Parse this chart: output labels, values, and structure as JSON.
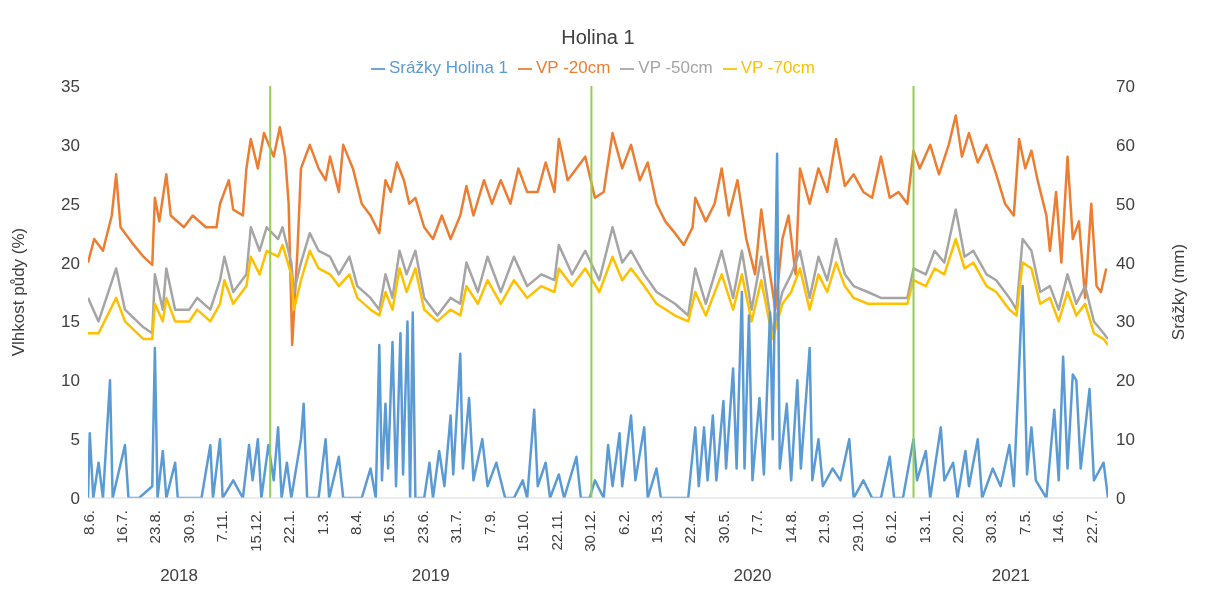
{
  "chart_data": {
    "type": "line",
    "title": "Holina 1",
    "ylabel": "Vlhkost půdy (%)",
    "y2label": "Srážky (mm)",
    "legend": "top",
    "marker": "none",
    "line_style": "solid",
    "xlim": [
      "2018-06-08",
      "2021-08-10"
    ],
    "xticks": [
      {
        "value": "2018-06-08",
        "label": "8.6."
      },
      {
        "value": "2018-07-16",
        "label": "16.7."
      },
      {
        "value": "2018-08-23",
        "label": "23.8."
      },
      {
        "value": "2018-09-30",
        "label": "30.9."
      },
      {
        "value": "2018-11-07",
        "label": "7.11."
      },
      {
        "value": "2018-12-15",
        "label": "15.12."
      },
      {
        "value": "2019-01-22",
        "label": "22.1."
      },
      {
        "value": "2019-03-01",
        "label": "1.3."
      },
      {
        "value": "2019-04-08",
        "label": "8.4."
      },
      {
        "value": "2019-05-16",
        "label": "16.5."
      },
      {
        "value": "2019-06-23",
        "label": "23.6."
      },
      {
        "value": "2019-07-31",
        "label": "31.7."
      },
      {
        "value": "2019-09-07",
        "label": "7.9."
      },
      {
        "value": "2019-10-15",
        "label": "15.10."
      },
      {
        "value": "2019-11-22",
        "label": "22.11."
      },
      {
        "value": "2019-12-30",
        "label": "30.12."
      },
      {
        "value": "2020-02-06",
        "label": "6.2."
      },
      {
        "value": "2020-03-15",
        "label": "15.3."
      },
      {
        "value": "2020-04-22",
        "label": "22.4."
      },
      {
        "value": "2020-05-30",
        "label": "30.5."
      },
      {
        "value": "2020-07-07",
        "label": "7.7."
      },
      {
        "value": "2020-08-14",
        "label": "14.8."
      },
      {
        "value": "2020-09-21",
        "label": "21.9."
      },
      {
        "value": "2020-10-29",
        "label": "29.10."
      },
      {
        "value": "2020-12-06",
        "label": "6.12."
      },
      {
        "value": "2021-01-13",
        "label": "13.1."
      },
      {
        "value": "2021-02-20",
        "label": "20.2."
      },
      {
        "value": "2021-03-30",
        "label": "30.3."
      },
      {
        "value": "2021-05-07",
        "label": "7.5."
      },
      {
        "value": "2021-06-14",
        "label": "14.6."
      },
      {
        "value": "2021-07-22",
        "label": "22.7."
      }
    ],
    "ylim": [
      0,
      35
    ],
    "yticks": [
      0,
      5,
      10,
      15,
      20,
      25,
      30,
      35
    ],
    "y2lim": [
      0,
      70
    ],
    "y2ticks": [
      0,
      10,
      20,
      30,
      40,
      50,
      60,
      70
    ],
    "ref_lines": [
      {
        "axis": "x",
        "value": "2019-01-01",
        "color": "#92d050"
      },
      {
        "axis": "x",
        "value": "2020-01-01",
        "color": "#92d050"
      },
      {
        "axis": "x",
        "value": "2021-01-01",
        "color": "#92d050"
      }
    ],
    "annotations": [
      "2018",
      "2019",
      "2020",
      "2021"
    ],
    "series": [
      {
        "name": "VP -20cm",
        "color": "#ed7d31",
        "x": [
          "2018-06-08",
          "2018-06-15",
          "2018-06-25",
          "2018-07-05",
          "2018-07-10",
          "2018-07-15",
          "2018-07-30",
          "2018-08-10",
          "2018-08-20",
          "2018-08-23",
          "2018-08-28",
          "2018-09-05",
          "2018-09-10",
          "2018-09-25",
          "2018-10-05",
          "2018-10-20",
          "2018-11-01",
          "2018-11-05",
          "2018-11-15",
          "2018-11-20",
          "2018-12-01",
          "2018-12-05",
          "2018-12-10",
          "2018-12-18",
          "2018-12-25",
          "2019-01-05",
          "2019-01-12",
          "2019-01-18",
          "2019-01-22",
          "2019-01-26",
          "2019-02-01",
          "2019-02-05",
          "2019-02-15",
          "2019-02-25",
          "2019-03-05",
          "2019-03-10",
          "2019-03-20",
          "2019-03-25",
          "2019-04-05",
          "2019-04-15",
          "2019-04-25",
          "2019-05-05",
          "2019-05-12",
          "2019-05-18",
          "2019-05-25",
          "2019-06-02",
          "2019-06-08",
          "2019-06-15",
          "2019-06-25",
          "2019-07-05",
          "2019-07-15",
          "2019-07-25",
          "2019-08-05",
          "2019-08-12",
          "2019-08-20",
          "2019-09-01",
          "2019-09-10",
          "2019-09-20",
          "2019-10-01",
          "2019-10-10",
          "2019-10-20",
          "2019-11-01",
          "2019-11-10",
          "2019-11-20",
          "2019-11-25",
          "2019-12-05",
          "2019-12-15",
          "2019-12-25",
          "2020-01-05",
          "2020-01-15",
          "2020-01-25",
          "2020-02-05",
          "2020-02-15",
          "2020-02-25",
          "2020-03-05",
          "2020-03-15",
          "2020-03-25",
          "2020-04-05",
          "2020-04-15",
          "2020-04-25",
          "2020-04-28",
          "2020-05-10",
          "2020-05-20",
          "2020-05-28",
          "2020-06-05",
          "2020-06-15",
          "2020-06-25",
          "2020-07-05",
          "2020-07-12",
          "2020-07-20",
          "2020-07-28",
          "2020-08-05",
          "2020-08-12",
          "2020-08-20",
          "2020-08-25",
          "2020-09-05",
          "2020-09-15",
          "2020-09-25",
          "2020-10-05",
          "2020-10-15",
          "2020-10-25",
          "2020-11-05",
          "2020-11-15",
          "2020-11-25",
          "2020-12-05",
          "2020-12-15",
          "2020-12-25",
          "2021-01-01",
          "2021-01-08",
          "2021-01-20",
          "2021-01-30",
          "2021-02-10",
          "2021-02-18",
          "2021-02-25",
          "2021-03-05",
          "2021-03-15",
          "2021-03-25",
          "2021-04-05",
          "2021-04-15",
          "2021-04-25",
          "2021-05-01",
          "2021-05-08",
          "2021-05-15",
          "2021-05-22",
          "2021-06-01",
          "2021-06-05",
          "2021-06-12",
          "2021-06-18",
          "2021-06-25",
          "2021-07-01",
          "2021-07-08",
          "2021-07-15",
          "2021-07-22",
          "2021-07-28",
          "2021-08-02",
          "2021-08-08"
        ],
        "values": [
          20,
          22,
          21,
          24,
          27.5,
          23,
          21.5,
          20.5,
          19.8,
          25.5,
          23.5,
          27.5,
          24,
          23,
          24,
          23,
          23,
          25,
          27,
          24.5,
          24,
          28,
          30.5,
          28,
          31,
          29,
          31.5,
          29,
          25,
          13,
          21,
          28,
          30,
          28,
          27,
          29,
          26,
          30,
          28,
          25,
          24,
          22.5,
          27,
          26,
          28.5,
          27,
          25,
          25.5,
          23,
          22,
          24,
          22,
          24,
          26.5,
          24,
          27,
          25,
          27,
          25,
          28,
          26,
          26,
          28.5,
          26,
          30.5,
          27,
          28,
          29,
          25.5,
          26,
          31,
          28,
          30,
          27,
          28.5,
          25,
          23.5,
          22.5,
          21.5,
          23,
          25.5,
          23.5,
          25,
          28,
          24,
          27,
          22,
          19,
          24.5,
          20,
          16,
          22,
          24,
          19,
          28,
          25,
          28,
          26,
          30.5,
          26.5,
          27.5,
          26,
          25.5,
          29,
          25.5,
          26,
          25,
          29.5,
          28,
          30,
          27.5,
          30,
          32.5,
          29,
          31,
          28.5,
          30,
          27.5,
          25,
          24,
          30.5,
          28,
          29.5,
          27,
          24,
          21,
          26,
          20,
          29,
          22,
          23.5,
          17,
          25,
          18,
          17.5,
          19.5
        ]
      },
      {
        "name": "VP -50cm",
        "color": "#a5a5a5",
        "x": [
          "2018-06-08",
          "2018-06-20",
          "2018-07-10",
          "2018-07-20",
          "2018-08-10",
          "2018-08-20",
          "2018-08-23",
          "2018-09-01",
          "2018-09-05",
          "2018-09-15",
          "2018-10-01",
          "2018-10-10",
          "2018-10-25",
          "2018-11-05",
          "2018-11-10",
          "2018-11-20",
          "2018-12-05",
          "2018-12-10",
          "2018-12-20",
          "2018-12-28",
          "2019-01-10",
          "2019-01-15",
          "2019-01-25",
          "2019-01-28",
          "2019-02-05",
          "2019-02-15",
          "2019-02-25",
          "2019-03-10",
          "2019-03-20",
          "2019-04-01",
          "2019-04-10",
          "2019-04-25",
          "2019-05-05",
          "2019-05-12",
          "2019-05-20",
          "2019-05-28",
          "2019-06-05",
          "2019-06-15",
          "2019-06-25",
          "2019-07-10",
          "2019-07-25",
          "2019-08-05",
          "2019-08-12",
          "2019-08-25",
          "2019-09-05",
          "2019-09-20",
          "2019-10-05",
          "2019-10-20",
          "2019-11-05",
          "2019-11-20",
          "2019-11-25",
          "2019-12-10",
          "2019-12-25",
          "2020-01-10",
          "2020-01-25",
          "2020-02-05",
          "2020-02-15",
          "2020-03-01",
          "2020-03-15",
          "2020-04-05",
          "2020-04-20",
          "2020-04-28",
          "2020-05-10",
          "2020-05-28",
          "2020-06-10",
          "2020-06-20",
          "2020-07-01",
          "2020-07-12",
          "2020-07-25",
          "2020-08-05",
          "2020-08-15",
          "2020-08-25",
          "2020-09-05",
          "2020-09-15",
          "2020-09-25",
          "2020-10-05",
          "2020-10-15",
          "2020-10-25",
          "2020-11-10",
          "2020-11-25",
          "2020-12-10",
          "2020-12-25",
          "2021-01-01",
          "2021-01-15",
          "2021-01-25",
          "2021-02-05",
          "2021-02-18",
          "2021-02-28",
          "2021-03-10",
          "2021-03-25",
          "2021-04-05",
          "2021-04-20",
          "2021-04-28",
          "2021-05-05",
          "2021-05-15",
          "2021-05-25",
          "2021-06-05",
          "2021-06-15",
          "2021-06-25",
          "2021-07-05",
          "2021-07-15",
          "2021-07-25",
          "2021-08-05",
          "2021-08-10"
        ],
        "values": [
          17,
          15,
          19.5,
          16,
          14.5,
          14,
          19,
          16,
          19.5,
          16,
          16,
          17,
          16,
          18.5,
          20.5,
          17.5,
          19,
          23,
          21,
          23,
          22,
          23,
          20,
          17.5,
          20,
          22.5,
          21,
          20.5,
          19,
          20.5,
          18,
          17,
          16,
          19,
          17,
          21,
          19,
          21,
          17,
          15.5,
          17,
          16.5,
          20,
          17.5,
          20.5,
          17.5,
          20.5,
          18,
          19,
          18.5,
          21.5,
          19,
          21,
          18.5,
          23,
          20,
          21,
          19,
          17.5,
          16.5,
          15.5,
          19.5,
          16.5,
          21,
          17,
          21,
          16,
          20.5,
          14,
          17.5,
          19,
          21,
          17,
          20.5,
          18.5,
          22,
          19,
          18,
          17.5,
          17,
          17,
          17,
          19.5,
          19,
          21,
          20,
          24.5,
          20.5,
          21,
          19,
          18.5,
          17,
          16,
          22,
          21,
          17.5,
          18,
          16,
          19,
          16.5,
          18,
          15,
          14,
          13.5
        ]
      },
      {
        "name": "VP -70cm",
        "color": "#ffc000",
        "x": [
          "2018-06-08",
          "2018-06-20",
          "2018-07-10",
          "2018-07-20",
          "2018-08-10",
          "2018-08-20",
          "2018-08-23",
          "2018-09-01",
          "2018-09-05",
          "2018-09-15",
          "2018-10-01",
          "2018-10-10",
          "2018-10-25",
          "2018-11-05",
          "2018-11-10",
          "2018-11-20",
          "2018-12-05",
          "2018-12-10",
          "2018-12-20",
          "2018-12-28",
          "2019-01-10",
          "2019-01-15",
          "2019-01-25",
          "2019-01-28",
          "2019-02-05",
          "2019-02-15",
          "2019-02-25",
          "2019-03-10",
          "2019-03-20",
          "2019-04-01",
          "2019-04-10",
          "2019-04-25",
          "2019-05-05",
          "2019-05-12",
          "2019-05-20",
          "2019-05-28",
          "2019-06-05",
          "2019-06-15",
          "2019-06-25",
          "2019-07-10",
          "2019-07-25",
          "2019-08-05",
          "2019-08-12",
          "2019-08-25",
          "2019-09-05",
          "2019-09-20",
          "2019-10-05",
          "2019-10-20",
          "2019-11-05",
          "2019-11-20",
          "2019-11-25",
          "2019-12-10",
          "2019-12-25",
          "2020-01-10",
          "2020-01-25",
          "2020-02-05",
          "2020-02-15",
          "2020-03-01",
          "2020-03-15",
          "2020-04-05",
          "2020-04-20",
          "2020-04-28",
          "2020-05-10",
          "2020-05-28",
          "2020-06-10",
          "2020-06-20",
          "2020-07-01",
          "2020-07-12",
          "2020-07-25",
          "2020-08-05",
          "2020-08-15",
          "2020-08-25",
          "2020-09-05",
          "2020-09-15",
          "2020-09-25",
          "2020-10-05",
          "2020-10-15",
          "2020-10-25",
          "2020-11-10",
          "2020-11-25",
          "2020-12-10",
          "2020-12-25",
          "2021-01-01",
          "2021-01-15",
          "2021-01-25",
          "2021-02-05",
          "2021-02-18",
          "2021-02-28",
          "2021-03-10",
          "2021-03-25",
          "2021-04-05",
          "2021-04-20",
          "2021-04-28",
          "2021-05-05",
          "2021-05-15",
          "2021-05-25",
          "2021-06-05",
          "2021-06-15",
          "2021-06-25",
          "2021-07-05",
          "2021-07-15",
          "2021-07-25",
          "2021-08-05",
          "2021-08-10"
        ],
        "values": [
          14,
          14,
          17,
          15,
          13.5,
          13.5,
          16.5,
          15,
          17,
          15,
          15,
          16,
          15,
          16.5,
          18.5,
          16.5,
          18,
          20.5,
          19,
          21,
          20.5,
          21.5,
          19,
          16,
          18.5,
          21,
          19.5,
          19,
          18,
          19,
          17,
          16,
          15.5,
          17.5,
          16,
          19.5,
          17.5,
          19.5,
          16,
          15,
          16,
          15.5,
          18,
          16.5,
          18.5,
          16.5,
          18.5,
          17,
          18,
          17.5,
          19.5,
          18,
          19.5,
          17.5,
          20.5,
          18.5,
          19.5,
          18,
          16.5,
          15.5,
          15,
          17.5,
          15.5,
          19,
          16,
          19,
          15,
          18.5,
          13.5,
          16.5,
          17.5,
          19.5,
          16,
          19,
          17.5,
          20,
          18,
          17,
          16.5,
          16.5,
          16.5,
          16.5,
          18.5,
          18,
          19.5,
          19,
          22,
          19.5,
          20,
          18,
          17.5,
          16,
          15.5,
          20,
          19.5,
          16.5,
          17,
          15,
          17.5,
          15.5,
          16.5,
          14,
          13.5,
          13
        ]
      },
      {
        "name": "Srážky Holina 1",
        "color": "#5b9bd5",
        "axis": "y2",
        "x": [
          "2018-06-08",
          "2018-06-10",
          "2018-06-14",
          "2018-06-20",
          "2018-06-25",
          "2018-07-03",
          "2018-07-06",
          "2018-07-20",
          "2018-07-24",
          "2018-08-05",
          "2018-08-20",
          "2018-08-23",
          "2018-08-26",
          "2018-09-01",
          "2018-09-05",
          "2018-09-15",
          "2018-09-18",
          "2018-10-01",
          "2018-10-15",
          "2018-10-25",
          "2018-10-28",
          "2018-11-05",
          "2018-11-08",
          "2018-11-20",
          "2018-12-01",
          "2018-12-08",
          "2018-12-12",
          "2018-12-18",
          "2018-12-22",
          "2018-12-30",
          "2019-01-05",
          "2019-01-10",
          "2019-01-14",
          "2019-01-20",
          "2019-01-25",
          "2019-02-05",
          "2019-02-08",
          "2019-02-12",
          "2019-02-25",
          "2019-03-05",
          "2019-03-09",
          "2019-03-20",
          "2019-03-25",
          "2019-04-05",
          "2019-04-15",
          "2019-04-25",
          "2019-05-01",
          "2019-05-05",
          "2019-05-08",
          "2019-05-12",
          "2019-05-15",
          "2019-05-20",
          "2019-05-24",
          "2019-05-29",
          "2019-06-01",
          "2019-06-06",
          "2019-06-09",
          "2019-06-12",
          "2019-06-15",
          "2019-06-25",
          "2019-07-01",
          "2019-07-05",
          "2019-07-12",
          "2019-07-18",
          "2019-07-25",
          "2019-07-28",
          "2019-08-05",
          "2019-08-08",
          "2019-08-15",
          "2019-08-20",
          "2019-08-30",
          "2019-09-05",
          "2019-09-15",
          "2019-09-25",
          "2019-10-05",
          "2019-10-15",
          "2019-10-20",
          "2019-10-28",
          "2019-11-01",
          "2019-11-10",
          "2019-11-15",
          "2019-11-25",
          "2019-12-01",
          "2019-12-15",
          "2019-12-20",
          "2019-12-30",
          "2020-01-05",
          "2020-01-15",
          "2020-01-20",
          "2020-01-25",
          "2020-02-02",
          "2020-02-05",
          "2020-02-15",
          "2020-02-20",
          "2020-03-01",
          "2020-03-05",
          "2020-03-15",
          "2020-03-20",
          "2020-04-01",
          "2020-04-20",
          "2020-04-28",
          "2020-05-02",
          "2020-05-08",
          "2020-05-12",
          "2020-05-18",
          "2020-05-22",
          "2020-05-30",
          "2020-06-02",
          "2020-06-10",
          "2020-06-14",
          "2020-06-20",
          "2020-06-23",
          "2020-06-28",
          "2020-07-02",
          "2020-07-10",
          "2020-07-15",
          "2020-07-22",
          "2020-07-25",
          "2020-07-30",
          "2020-08-02",
          "2020-08-10",
          "2020-08-15",
          "2020-08-22",
          "2020-08-26",
          "2020-09-05",
          "2020-09-08",
          "2020-09-15",
          "2020-09-20",
          "2020-10-01",
          "2020-10-10",
          "2020-10-20",
          "2020-10-25",
          "2020-11-05",
          "2020-11-15",
          "2020-11-25",
          "2020-12-05",
          "2020-12-10",
          "2020-12-20",
          "2021-01-01",
          "2021-01-05",
          "2021-01-15",
          "2021-01-20",
          "2021-02-01",
          "2021-02-05",
          "2021-02-15",
          "2021-02-20",
          "2021-03-01",
          "2021-03-05",
          "2021-03-15",
          "2021-03-20",
          "2021-04-01",
          "2021-04-10",
          "2021-04-20",
          "2021-04-25",
          "2021-05-05",
          "2021-05-10",
          "2021-05-15",
          "2021-05-20",
          "2021-06-01",
          "2021-06-10",
          "2021-06-15",
          "2021-06-20",
          "2021-06-25",
          "2021-07-01",
          "2021-07-05",
          "2021-07-10",
          "2021-07-20",
          "2021-07-25",
          "2021-08-05",
          "2021-08-10"
        ],
        "values": [
          0,
          11,
          0,
          6,
          0,
          20,
          0,
          9,
          0,
          0,
          2,
          25.5,
          0,
          8,
          0,
          6,
          0,
          0,
          0,
          9,
          0,
          10,
          0,
          3,
          0,
          9,
          3,
          10,
          0,
          9,
          3,
          12,
          0,
          6,
          0,
          10,
          16,
          0,
          0,
          10,
          0,
          7,
          0,
          0,
          0,
          5,
          0,
          26,
          3,
          16,
          5,
          26.5,
          2,
          28,
          4,
          30,
          0,
          31.5,
          0,
          0,
          6,
          0,
          8,
          2,
          14,
          4,
          24.5,
          5,
          17,
          3,
          10,
          2,
          6,
          0,
          0,
          3,
          0,
          15,
          2,
          6,
          0,
          4,
          0,
          7,
          0,
          0,
          3,
          0,
          9,
          2,
          11,
          2,
          14,
          3,
          12,
          0,
          5,
          0,
          0,
          0,
          12,
          2,
          12,
          3,
          14,
          3,
          16.5,
          5,
          22,
          5,
          35,
          5,
          31,
          3,
          17,
          4,
          31.5,
          10,
          58.5,
          5,
          16,
          3,
          20,
          5,
          25.5,
          3,
          10,
          2,
          5,
          3,
          10,
          0,
          3,
          0,
          0,
          7,
          0,
          0,
          10,
          3,
          8,
          0,
          12,
          3,
          6,
          0,
          8,
          2,
          10,
          0,
          5,
          2,
          9,
          2,
          36,
          4,
          12,
          3,
          0,
          15,
          3,
          24,
          5,
          21,
          20,
          5,
          18.5,
          3,
          6,
          0
        ]
      }
    ]
  }
}
